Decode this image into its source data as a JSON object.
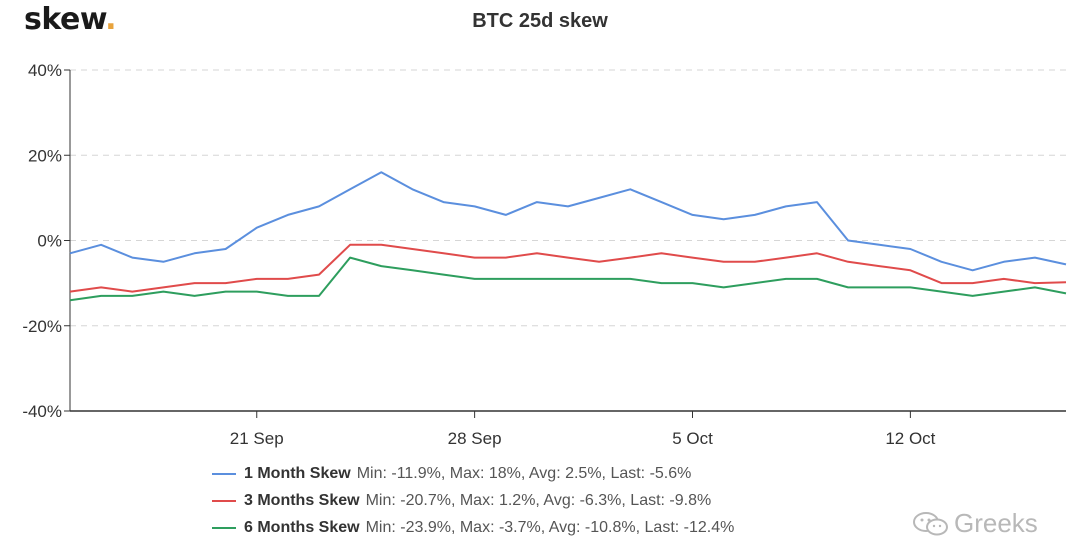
{
  "brand": {
    "name": "skew",
    "dot": ".",
    "accent": "#e8a33d"
  },
  "watermark": {
    "text": "Greeks",
    "icon": "wechat-icon"
  },
  "chart_data": {
    "type": "line",
    "title": "BTC 25d skew",
    "xlabel": "",
    "ylabel": "",
    "ylim": [
      -40,
      40
    ],
    "xlim": [
      "2020-09-15",
      "2020-10-17"
    ],
    "yticks": [
      -40,
      -20,
      0,
      20,
      40
    ],
    "ytick_labels": [
      "-40%",
      "-20%",
      "0%",
      "20%",
      "40%"
    ],
    "xticks": [
      "2020-09-21",
      "2020-09-28",
      "2020-10-05",
      "2020-10-12"
    ],
    "xtick_labels": [
      "21 Sep",
      "28 Sep",
      "5 Oct",
      "12 Oct"
    ],
    "grid": "horizontal dashed",
    "legend_placement": "bottom",
    "x": [
      "2020-09-15",
      "2020-09-16",
      "2020-09-17",
      "2020-09-18",
      "2020-09-19",
      "2020-09-20",
      "2020-09-21",
      "2020-09-22",
      "2020-09-23",
      "2020-09-24",
      "2020-09-25",
      "2020-09-26",
      "2020-09-27",
      "2020-09-28",
      "2020-09-29",
      "2020-09-30",
      "2020-10-01",
      "2020-10-02",
      "2020-10-03",
      "2020-10-04",
      "2020-10-05",
      "2020-10-06",
      "2020-10-07",
      "2020-10-08",
      "2020-10-09",
      "2020-10-10",
      "2020-10-11",
      "2020-10-12",
      "2020-10-13",
      "2020-10-14",
      "2020-10-15",
      "2020-10-16",
      "2020-10-17"
    ],
    "series": [
      {
        "name": "1 Month Skew",
        "color": "#5b8fde",
        "stats": "Min: -11.9%, Max: 18%, Avg: 2.5%, Last: -5.6%",
        "values": [
          -3,
          -1,
          -4,
          -5,
          -3,
          -2,
          3,
          6,
          8,
          12,
          16,
          12,
          9,
          8,
          6,
          9,
          8,
          10,
          12,
          9,
          6,
          5,
          6,
          8,
          9,
          0,
          -1,
          -2,
          -5,
          -7,
          -5,
          -4,
          -5.6
        ]
      },
      {
        "name": "3 Months Skew",
        "color": "#e04b4b",
        "stats": "Min: -20.7%, Max: 1.2%, Avg: -6.3%, Last: -9.8%",
        "values": [
          -12,
          -11,
          -12,
          -11,
          -10,
          -10,
          -9,
          -9,
          -8,
          -1,
          -1,
          -2,
          -3,
          -4,
          -4,
          -3,
          -4,
          -5,
          -4,
          -3,
          -4,
          -5,
          -5,
          -4,
          -3,
          -5,
          -6,
          -7,
          -10,
          -10,
          -9,
          -10,
          -9.8
        ]
      },
      {
        "name": "6 Months Skew",
        "color": "#2e9e5e",
        "stats": "Min: -23.9%, Max: -3.7%, Avg: -10.8%, Last: -12.4%",
        "values": [
          -14,
          -13,
          -13,
          -12,
          -13,
          -12,
          -12,
          -13,
          -13,
          -4,
          -6,
          -7,
          -8,
          -9,
          -9,
          -9,
          -9,
          -9,
          -9,
          -10,
          -10,
          -11,
          -10,
          -9,
          -9,
          -11,
          -11,
          -11,
          -12,
          -13,
          -12,
          -11,
          -12.4
        ]
      }
    ]
  }
}
